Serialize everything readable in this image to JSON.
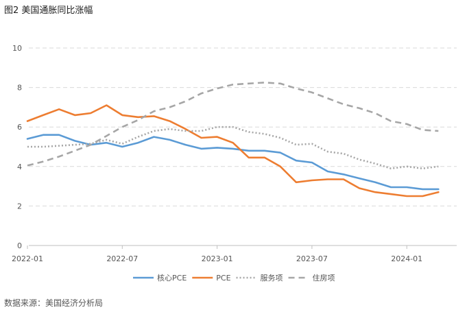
{
  "title": "图2 美国通胀同比涨幅",
  "source": "数据来源：美国经济分析局",
  "chart_data": {
    "type": "line",
    "title": "图2 美国通胀同比涨幅",
    "x_ticks": [
      "2022-01",
      "2022-07",
      "2023-01",
      "2023-07",
      "2024-01"
    ],
    "x": [
      "2022-01",
      "2022-02",
      "2022-03",
      "2022-04",
      "2022-05",
      "2022-06",
      "2022-07",
      "2022-08",
      "2022-09",
      "2022-10",
      "2022-11",
      "2022-12",
      "2023-01",
      "2023-02",
      "2023-03",
      "2023-04",
      "2023-05",
      "2023-06",
      "2023-07",
      "2023-08",
      "2023-09",
      "2023-10",
      "2023-11",
      "2023-12",
      "2024-01",
      "2024-02",
      "2024-03"
    ],
    "ylim": [
      0,
      10
    ],
    "y_ticks": [
      0,
      2,
      4,
      6,
      8,
      10
    ],
    "grid": true,
    "legend_position": "bottom",
    "series": [
      {
        "name": "核心PCE",
        "color": "#5B9BD5",
        "style": "solid",
        "values": [
          5.4,
          5.6,
          5.6,
          5.3,
          5.1,
          5.2,
          5.0,
          5.2,
          5.5,
          5.35,
          5.1,
          4.9,
          4.95,
          4.9,
          4.8,
          4.8,
          4.7,
          4.3,
          4.2,
          3.75,
          3.6,
          3.4,
          3.2,
          2.95,
          2.95,
          2.85,
          2.85
        ]
      },
      {
        "name": "PCE",
        "color": "#ED7D31",
        "style": "solid",
        "values": [
          6.3,
          6.6,
          6.9,
          6.6,
          6.7,
          7.1,
          6.6,
          6.5,
          6.55,
          6.3,
          5.9,
          5.45,
          5.5,
          5.2,
          4.45,
          4.45,
          4.0,
          3.2,
          3.3,
          3.35,
          3.35,
          2.9,
          2.7,
          2.6,
          2.5,
          2.5,
          2.7
        ]
      },
      {
        "name": "服务项",
        "color": "#A6A6A6",
        "style": "dotted",
        "values": [
          5.0,
          5.0,
          5.05,
          5.1,
          5.15,
          5.35,
          5.15,
          5.5,
          5.8,
          5.9,
          5.8,
          5.8,
          6.0,
          6.0,
          5.75,
          5.65,
          5.45,
          5.1,
          5.15,
          4.75,
          4.65,
          4.35,
          4.15,
          3.9,
          4.0,
          3.9,
          4.0
        ]
      },
      {
        "name": "住房项",
        "color": "#A6A6A6",
        "style": "dashed",
        "values": [
          4.05,
          4.25,
          4.5,
          4.8,
          5.1,
          5.55,
          6.0,
          6.35,
          6.8,
          7.0,
          7.3,
          7.7,
          7.95,
          8.15,
          8.2,
          8.25,
          8.2,
          7.95,
          7.75,
          7.45,
          7.15,
          6.95,
          6.7,
          6.3,
          6.15,
          5.85,
          5.8
        ]
      }
    ]
  }
}
